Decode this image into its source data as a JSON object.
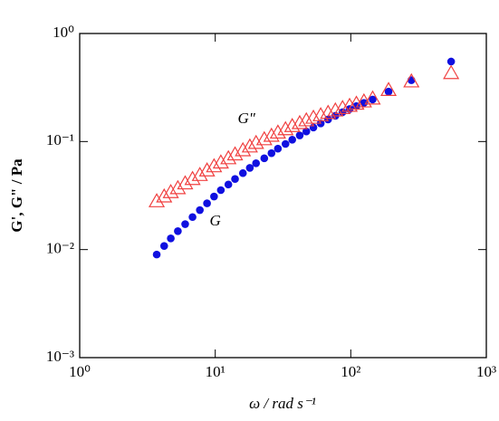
{
  "chart_data": {
    "type": "scatter",
    "x_label": "ω / rad s⁻¹",
    "y_label": "G', G\" / Pa",
    "log_x": true,
    "log_y": true,
    "xlim": [
      1,
      1000
    ],
    "xticks": [
      {
        "value": 1,
        "label": "10⁰"
      },
      {
        "value": 10,
        "label": "10¹"
      },
      {
        "value": 100,
        "label": "10²"
      },
      {
        "value": 1000,
        "label": "10³"
      }
    ],
    "ylim": [
      0.001,
      1
    ],
    "yticks": [
      {
        "value": 0.001,
        "label": "10⁻³"
      },
      {
        "value": 0.01,
        "label": "10⁻²"
      },
      {
        "value": 0.1,
        "label": "10⁻¹"
      },
      {
        "value": 1,
        "label": "10⁰"
      }
    ],
    "x": [
      3.7,
      4.2,
      4.7,
      5.3,
      6.0,
      6.8,
      7.7,
      8.7,
      9.8,
      11,
      12.5,
      14,
      16,
      18,
      20,
      23,
      26,
      29,
      33,
      37,
      42,
      47,
      53,
      60,
      68,
      77,
      87,
      98,
      110,
      125,
      145,
      190,
      280,
      550
    ],
    "series": [
      {
        "color": "#1010e0",
        "marker": "circle",
        "values": [
          0.009,
          0.0108,
          0.0127,
          0.0148,
          0.0172,
          0.02,
          0.0232,
          0.0268,
          0.031,
          0.0355,
          0.04,
          0.045,
          0.051,
          0.057,
          0.063,
          0.07,
          0.078,
          0.086,
          0.095,
          0.104,
          0.114,
          0.124,
          0.135,
          0.147,
          0.16,
          0.173,
          0.187,
          0.2,
          0.213,
          0.228,
          0.245,
          0.29,
          0.37,
          0.55
        ]
      },
      {
        "color": "#f04040",
        "marker": "triangle",
        "values": [
          0.028,
          0.031,
          0.034,
          0.037,
          0.041,
          0.045,
          0.049,
          0.054,
          0.059,
          0.064,
          0.07,
          0.076,
          0.083,
          0.09,
          0.097,
          0.105,
          0.113,
          0.121,
          0.13,
          0.139,
          0.148,
          0.157,
          0.166,
          0.175,
          0.184,
          0.194,
          0.204,
          0.214,
          0.224,
          0.235,
          0.25,
          0.3,
          0.36,
          0.43
        ]
      }
    ],
    "annotations": [
      {
        "text": "G\"",
        "color": "#f04040",
        "x": 17,
        "y": 0.16
      },
      {
        "text": "G",
        "color": "#1010e0",
        "x": 10,
        "y": 0.018
      }
    ]
  }
}
